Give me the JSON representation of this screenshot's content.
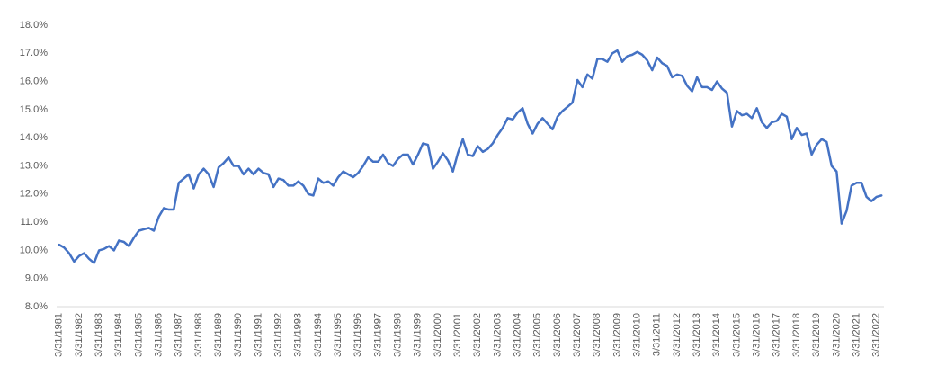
{
  "chart_data": {
    "type": "line",
    "categories": [
      "3/31/1981",
      null,
      null,
      null,
      "3/31/1982",
      null,
      null,
      null,
      "3/31/1983",
      null,
      null,
      null,
      "3/31/1984",
      null,
      null,
      null,
      "3/31/1985",
      null,
      null,
      null,
      "3/31/1986",
      null,
      null,
      null,
      "3/31/1987",
      null,
      null,
      null,
      "3/31/1988",
      null,
      null,
      null,
      "3/31/1989",
      null,
      null,
      null,
      "3/31/1990",
      null,
      null,
      null,
      "3/31/1991",
      null,
      null,
      null,
      "3/31/1992",
      null,
      null,
      null,
      "3/31/1993",
      null,
      null,
      null,
      "3/31/1994",
      null,
      null,
      null,
      "3/31/1995",
      null,
      null,
      null,
      "3/31/1996",
      null,
      null,
      null,
      "3/31/1997",
      null,
      null,
      null,
      "3/31/1998",
      null,
      null,
      null,
      "3/31/1999",
      null,
      null,
      null,
      "3/31/2000",
      null,
      null,
      null,
      "3/31/2001",
      null,
      null,
      null,
      "3/31/2002",
      null,
      null,
      null,
      "3/31/2003",
      null,
      null,
      null,
      "3/31/2004",
      null,
      null,
      null,
      "3/31/2005",
      null,
      null,
      null,
      "3/31/2006",
      null,
      null,
      null,
      "3/31/2007",
      null,
      null,
      null,
      "3/31/2008",
      null,
      null,
      null,
      "3/31/2009",
      null,
      null,
      null,
      "3/31/2010",
      null,
      null,
      null,
      "3/31/2011",
      null,
      null,
      null,
      "3/31/2012",
      null,
      null,
      null,
      "3/31/2013",
      null,
      null,
      null,
      "3/31/2014",
      null,
      null,
      null,
      "3/31/2015",
      null,
      null,
      null,
      "3/31/2016",
      null,
      null,
      null,
      "3/31/2017",
      null,
      null,
      null,
      "3/31/2018",
      null,
      null,
      null,
      "3/31/2019",
      null,
      null,
      null,
      "3/31/2020",
      null,
      null,
      null,
      "3/31/2021",
      null,
      null,
      null,
      "3/31/2022",
      null
    ],
    "values": [
      10.2,
      10.1,
      9.9,
      9.6,
      9.8,
      9.9,
      9.7,
      9.55,
      10.0,
      10.05,
      10.15,
      10.0,
      10.35,
      10.3,
      10.15,
      10.45,
      10.7,
      10.75,
      10.8,
      10.7,
      11.2,
      11.5,
      11.45,
      11.45,
      12.4,
      12.55,
      12.7,
      12.2,
      12.7,
      12.9,
      12.7,
      12.25,
      12.95,
      13.1,
      13.3,
      13.0,
      13.0,
      12.7,
      12.9,
      12.7,
      12.9,
      12.75,
      12.7,
      12.25,
      12.55,
      12.5,
      12.3,
      12.3,
      12.45,
      12.3,
      12.0,
      11.95,
      12.55,
      12.4,
      12.45,
      12.3,
      12.6,
      12.8,
      12.7,
      12.6,
      12.75,
      13.0,
      13.3,
      13.15,
      13.15,
      13.4,
      13.1,
      13.0,
      13.25,
      13.4,
      13.4,
      13.05,
      13.4,
      13.8,
      13.75,
      12.9,
      13.15,
      13.45,
      13.2,
      12.8,
      13.45,
      13.95,
      13.4,
      13.35,
      13.7,
      13.5,
      13.6,
      13.8,
      14.1,
      14.35,
      14.7,
      14.65,
      14.9,
      15.05,
      14.5,
      14.15,
      14.5,
      14.7,
      14.5,
      14.3,
      14.75,
      14.95,
      15.1,
      15.25,
      16.05,
      15.8,
      16.25,
      16.1,
      16.8,
      16.8,
      16.7,
      17.0,
      17.1,
      16.7,
      16.9,
      16.95,
      17.05,
      16.95,
      16.75,
      16.4,
      16.85,
      16.65,
      16.55,
      16.15,
      16.25,
      16.2,
      15.85,
      15.65,
      16.15,
      15.8,
      15.8,
      15.7,
      16.0,
      15.75,
      15.6,
      14.4,
      14.95,
      14.8,
      14.85,
      14.7,
      15.05,
      14.55,
      14.35,
      14.55,
      14.6,
      14.85,
      14.75,
      13.95,
      14.35,
      14.1,
      14.15,
      13.4,
      13.75,
      13.95,
      13.85,
      13.0,
      12.8,
      10.95,
      11.4,
      12.3,
      12.4,
      12.4,
      11.9,
      11.75,
      11.9,
      11.95
    ],
    "color": "#4472c4",
    "ylim": [
      8,
      18
    ],
    "yticks": [
      {
        "value": 8,
        "label": "8.0%"
      },
      {
        "value": 9,
        "label": "9.0%"
      },
      {
        "value": 10,
        "label": "10.0%"
      },
      {
        "value": 11,
        "label": "11.0%"
      },
      {
        "value": 12,
        "label": "12.0%"
      },
      {
        "value": 13,
        "label": "13.0%"
      },
      {
        "value": 14,
        "label": "14.0%"
      },
      {
        "value": 15,
        "label": "15.0%"
      },
      {
        "value": 16,
        "label": "16.0%"
      },
      {
        "value": 17,
        "label": "17.0%"
      },
      {
        "value": 18,
        "label": "18.0%"
      }
    ],
    "grid": false
  }
}
